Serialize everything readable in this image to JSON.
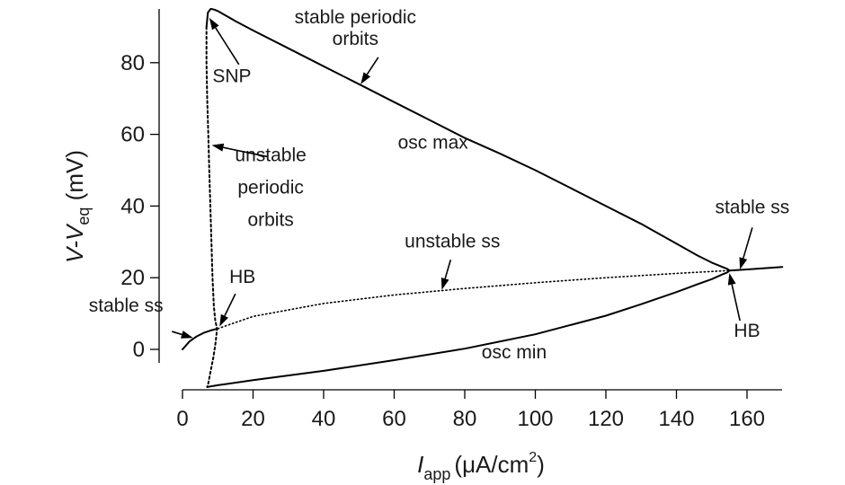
{
  "chart_data": {
    "type": "line",
    "title": "",
    "xlabel": {
      "main": "I",
      "sub": "app",
      "units": "(μA/cm",
      "sup": "2",
      "close": ")"
    },
    "ylabel": {
      "prefix": "V-V",
      "sub": "eq",
      "units": " (mV)"
    },
    "xlim": [
      0,
      170
    ],
    "ylim": [
      -12,
      96
    ],
    "xticks": [
      0,
      20,
      40,
      60,
      80,
      100,
      120,
      140,
      160
    ],
    "yticks": [
      0,
      20,
      40,
      60,
      80
    ],
    "grid": false,
    "series": [
      {
        "style": "solid",
        "x": [
          0,
          2,
          4,
          6,
          8,
          10
        ],
        "y": [
          0,
          2.2,
          3.6,
          4.6,
          5.3,
          5.8
        ]
      },
      {
        "style": "dotted",
        "x": [
          10,
          20,
          40,
          60,
          80,
          100,
          120,
          140,
          155
        ],
        "y": [
          5.8,
          9.2,
          12.8,
          15.2,
          17.0,
          18.6,
          20.0,
          21.2,
          22.0
        ]
      },
      {
        "style": "solid",
        "x": [
          155,
          160,
          170
        ],
        "y": [
          22.0,
          22.3,
          23.0
        ]
      },
      {
        "style": "solid",
        "x": [
          6.8,
          7.2,
          8,
          9,
          10,
          12,
          15,
          20,
          30,
          40,
          50,
          60,
          70,
          80,
          90,
          100,
          110,
          120,
          130,
          140,
          146,
          150,
          153,
          154.5,
          155
        ],
        "y": [
          90,
          94,
          95,
          94.8,
          94.4,
          93.3,
          91.6,
          89,
          84,
          79,
          74,
          69,
          64,
          59,
          54.6,
          50,
          45,
          40,
          35,
          29.5,
          26.2,
          24.2,
          23.0,
          22.4,
          22.0
        ]
      },
      {
        "style": "solid",
        "x": [
          7,
          10,
          20,
          40,
          60,
          80,
          100,
          120,
          130,
          140,
          146,
          150,
          153,
          154.5,
          155
        ],
        "y": [
          -10.5,
          -10,
          -8.6,
          -6,
          -3,
          0.2,
          4.2,
          9.4,
          12.6,
          16,
          18.2,
          19.6,
          20.9,
          21.5,
          22.0
        ]
      },
      {
        "style": "dashed",
        "x": [
          6.8,
          6.8,
          7.0,
          7.3,
          7.6,
          7.9,
          8.2,
          8.5,
          8.9,
          9.3,
          9.8,
          9.4,
          8.8,
          8.2,
          7.7,
          7.3,
          7.0
        ],
        "y": [
          90,
          80,
          70,
          60,
          50,
          40,
          30,
          20,
          12,
          8,
          5.8,
          2,
          -2,
          -5,
          -7.5,
          -9.5,
          -10.5
        ]
      }
    ],
    "annotations": [
      {
        "lines": [
          "stable periodic",
          "orbits"
        ],
        "text_at": [
          49,
          91
        ],
        "line_gap": 6,
        "arrow_from": [
          55.5,
          81.5
        ],
        "arrow_to": [
          50.5,
          74
        ]
      },
      {
        "lines": [
          "SNP"
        ],
        "text_at": [
          14,
          74.5
        ],
        "arrow_from": [
          16,
          79.5
        ],
        "arrow_to": [
          7.6,
          92.5
        ]
      },
      {
        "lines": [
          "osc max"
        ],
        "text_at": [
          71,
          56
        ],
        "arrow_from": null,
        "arrow_to": null
      },
      {
        "lines": [
          "unstable",
          "periodic",
          "orbits"
        ],
        "text_at": [
          25,
          52.5
        ],
        "line_gap": 9,
        "arrow_from": [
          24,
          53.8
        ],
        "arrow_to": [
          8.3,
          57
        ]
      },
      {
        "lines": [
          "stable ss"
        ],
        "text_at": [
          161.5,
          38
        ],
        "arrow_from": [
          161.5,
          34
        ],
        "arrow_to": [
          158,
          22.3
        ]
      },
      {
        "lines": [
          "unstable ss"
        ],
        "text_at": [
          76.5,
          28.5
        ],
        "arrow_from": [
          76,
          25
        ],
        "arrow_to": [
          73.5,
          16.6
        ]
      },
      {
        "lines": [
          "HB"
        ],
        "text_at": [
          17,
          18.5
        ],
        "arrow_from": [
          15,
          15.5
        ],
        "arrow_to": [
          10.5,
          6.4
        ]
      },
      {
        "lines": [
          "stable ss"
        ],
        "text_at": [
          -16,
          10.5
        ],
        "arrow_from": [
          -3,
          5
        ],
        "arrow_to": [
          3,
          3.2
        ]
      },
      {
        "lines": [
          "HB"
        ],
        "text_at": [
          160,
          3.5
        ],
        "arrow_from": [
          158,
          8
        ],
        "arrow_to": [
          155,
          21.3
        ]
      },
      {
        "lines": [
          "osc min"
        ],
        "text_at": [
          94,
          -2.5
        ],
        "arrow_from": null,
        "arrow_to": null
      }
    ]
  }
}
